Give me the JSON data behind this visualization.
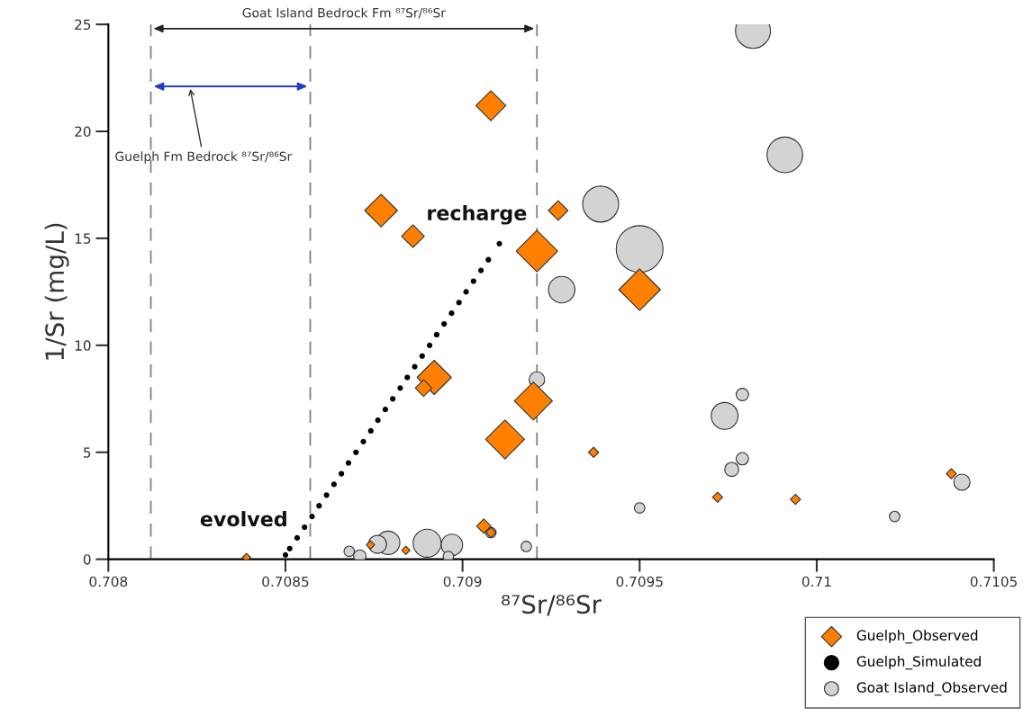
{
  "chart_data": {
    "type": "bubble",
    "xlabel": "⁸⁷Sr/⁸⁶Sr",
    "ylabel": "1/Sr (mg/L)",
    "xlim": [
      0.708,
      0.7105
    ],
    "xticks": [
      0.708,
      0.7085,
      0.709,
      0.7095,
      0.71,
      0.7105
    ],
    "ylim": [
      0,
      25
    ],
    "yticks": [
      0,
      5,
      10,
      15,
      20,
      25
    ],
    "grid": false,
    "legend": "bottom right",
    "series": [
      {
        "name": "Guelph_Observed",
        "marker": "diamond",
        "color": "#ff8000",
        "x": [
          0.70908,
          0.70877,
          0.70886,
          0.70927,
          0.70921,
          0.7095,
          0.70892,
          0.70889,
          0.7092,
          0.70912,
          0.70937,
          0.70972,
          0.70994,
          0.71038,
          0.70906,
          0.70908,
          0.70874,
          0.70884,
          0.70839
        ],
        "values": [
          21.2,
          16.3,
          15.1,
          16.3,
          14.4,
          12.6,
          8.5,
          8.0,
          7.4,
          5.6,
          5.0,
          2.9,
          2.8,
          4.0,
          1.55,
          1.25,
          0.67,
          0.42,
          0.08
        ],
        "sizes": [
          0.26,
          0.31,
          0.15,
          0.11,
          0.5,
          0.5,
          0.34,
          0.08,
          0.42,
          0.44,
          0.03,
          0.03,
          0.03,
          0.03,
          0.06,
          0.03,
          0.02,
          0.02,
          0.02
        ]
      },
      {
        "name": "Guelph_Simulated",
        "type": "scatter",
        "marker": "circle",
        "color": "#000000",
        "x": [
          0.7085,
          0.708512,
          0.708533,
          0.708554,
          0.708575,
          0.708595,
          0.708616,
          0.708637,
          0.708658,
          0.708678,
          0.708699,
          0.70872,
          0.708741,
          0.708761,
          0.708782,
          0.708803,
          0.708824,
          0.708844,
          0.708865,
          0.708886,
          0.708907,
          0.708927,
          0.708948,
          0.708969,
          0.70899,
          0.70901,
          0.709031,
          0.709052,
          0.709073,
          0.709104
        ],
        "values": [
          0.2,
          0.5,
          1,
          1.5,
          2,
          2.5,
          3,
          3.5,
          4,
          4.5,
          5,
          5.5,
          6,
          6.5,
          7,
          7.5,
          8,
          8.5,
          9,
          9.5,
          10,
          10.5,
          11,
          11.5,
          12,
          12.5,
          13,
          13.5,
          14,
          14.75
        ]
      },
      {
        "name": "Goat Island_Observed",
        "marker": "circle",
        "color": "#d3d3d3",
        "x": [
          0.70982,
          0.70991,
          0.70939,
          0.7095,
          0.70928,
          0.70921,
          0.70979,
          0.70974,
          0.70979,
          0.70976,
          0.71041,
          0.7095,
          0.71022,
          0.70908,
          0.70918,
          0.70868,
          0.70871,
          0.70879,
          0.70876,
          0.7089,
          0.70897,
          0.70896
        ],
        "values": [
          24.7,
          18.9,
          16.6,
          14.5,
          12.6,
          8.4,
          7.7,
          6.7,
          4.7,
          4.2,
          3.6,
          2.4,
          2.0,
          1.25,
          0.6,
          0.37,
          0.15,
          0.77,
          0.7,
          0.75,
          0.67,
          0.13
        ],
        "sizes": [
          0.56,
          0.58,
          0.59,
          1,
          0.32,
          0.11,
          0.07,
          0.33,
          0.07,
          0.09,
          0.12,
          0.05,
          0.05,
          0.05,
          0.05,
          0.05,
          0.07,
          0.25,
          0.15,
          0.36,
          0.21,
          0.05
        ]
      }
    ],
    "ref_lines": [
      {
        "axis": "x",
        "value": 0.70812,
        "color": "#808080",
        "line_style": "dashed"
      },
      {
        "axis": "x",
        "value": 0.70857,
        "color": "#808080",
        "line_style": "dashed"
      },
      {
        "axis": "x",
        "value": 0.70921,
        "color": "#808080",
        "line_style": "dashed"
      }
    ],
    "annotations": [
      "Goat Island Bedrock Fm ⁸⁷Sr/⁸⁶Sr",
      "Guelph Fm Bedrock ⁸⁷Sr/⁸⁶Sr",
      "recharge",
      "evolved"
    ]
  }
}
